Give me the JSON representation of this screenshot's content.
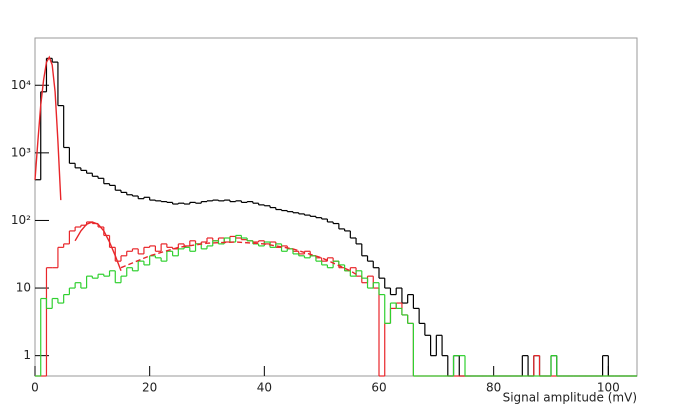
{
  "chart_data": {
    "type": "histogram",
    "xlabel": "Signal amplitude (mV)",
    "xlim": [
      0,
      105
    ],
    "xticks": [
      0,
      20,
      40,
      60,
      80,
      100
    ],
    "ylim": [
      0.5,
      50000
    ],
    "log_y": true,
    "yticks": [
      1,
      10,
      {
        "value": 100,
        "label": "10²"
      },
      {
        "value": 1000,
        "label": "10³"
      },
      {
        "value": 10000,
        "label": "10⁴"
      }
    ],
    "bins": [
      0,
      1,
      2,
      3,
      4,
      5,
      6,
      7,
      8,
      9,
      10,
      11,
      12,
      13,
      14,
      15,
      16,
      17,
      18,
      19,
      20,
      21,
      22,
      23,
      24,
      25,
      26,
      27,
      28,
      29,
      30,
      31,
      32,
      33,
      34,
      35,
      36,
      37,
      38,
      39,
      40,
      41,
      42,
      43,
      44,
      45,
      46,
      47,
      48,
      49,
      50,
      51,
      52,
      53,
      54,
      55,
      56,
      57,
      58,
      59,
      60,
      61,
      62,
      63,
      64,
      65,
      66,
      67,
      68,
      69,
      70,
      71,
      72,
      73,
      74,
      75,
      76,
      77,
      78,
      79,
      80,
      81,
      82,
      83,
      84,
      85,
      86,
      87,
      88,
      89,
      90,
      91,
      92,
      93,
      94,
      95,
      96,
      97,
      98,
      99,
      100,
      101,
      102,
      103,
      104,
      105
    ],
    "series": [
      {
        "color": "#000000",
        "values": [
          400,
          8000,
          25000,
          22000,
          5000,
          1200,
          700,
          600,
          550,
          500,
          450,
          420,
          350,
          330,
          280,
          260,
          240,
          230,
          210,
          220,
          200,
          195,
          190,
          185,
          175,
          180,
          175,
          185,
          180,
          190,
          195,
          200,
          195,
          200,
          190,
          195,
          185,
          190,
          180,
          170,
          165,
          155,
          145,
          140,
          135,
          130,
          125,
          120,
          115,
          110,
          105,
          95,
          90,
          75,
          70,
          55,
          45,
          30,
          25,
          20,
          14,
          10,
          8,
          10,
          6,
          8,
          5,
          3,
          2,
          1,
          2,
          1,
          0,
          1,
          0,
          0,
          0,
          0,
          0,
          0,
          0,
          0,
          0,
          0,
          0,
          1,
          0,
          1,
          0,
          0,
          1,
          0,
          0,
          0,
          0,
          0,
          0,
          0,
          0,
          1,
          0,
          0,
          0,
          0,
          0
        ]
      },
      {
        "color": "#e8262a",
        "values": [
          0,
          0,
          20,
          20,
          40,
          45,
          70,
          80,
          85,
          95,
          90,
          80,
          60,
          40,
          25,
          30,
          35,
          38,
          32,
          40,
          42,
          35,
          45,
          40,
          38,
          45,
          42,
          50,
          45,
          48,
          55,
          50,
          55,
          48,
          58,
          55,
          52,
          50,
          48,
          50,
          45,
          48,
          40,
          42,
          38,
          35,
          32,
          35,
          30,
          28,
          25,
          28,
          25,
          20,
          18,
          20,
          15,
          12,
          15,
          10,
          0,
          3,
          5,
          6,
          4,
          3,
          0,
          0,
          0,
          0,
          0,
          0,
          0,
          0,
          0,
          0,
          0,
          0,
          0,
          0,
          0,
          0,
          0,
          0,
          0,
          0,
          0,
          1,
          0,
          0,
          0,
          0,
          0,
          0,
          0,
          0,
          0,
          0,
          0,
          0,
          0,
          0,
          0,
          0,
          0
        ]
      },
      {
        "color": "#30d030",
        "values": [
          0,
          7,
          5,
          7,
          6,
          8,
          10,
          12,
          10,
          15,
          14,
          16,
          15,
          18,
          12,
          15,
          20,
          18,
          25,
          22,
          30,
          28,
          25,
          35,
          30,
          38,
          40,
          35,
          45,
          38,
          42,
          50,
          45,
          55,
          48,
          60,
          55,
          50,
          45,
          42,
          48,
          40,
          45,
          35,
          38,
          32,
          30,
          28,
          30,
          25,
          22,
          20,
          25,
          22,
          18,
          15,
          18,
          14,
          10,
          12,
          8,
          3,
          6,
          5,
          4,
          3,
          0,
          0,
          0,
          0,
          0,
          0,
          0,
          1,
          1,
          0,
          0,
          0,
          0,
          0,
          0,
          0,
          0,
          0,
          0,
          0,
          0,
          0,
          0,
          0,
          1,
          0,
          0,
          0,
          0,
          0,
          0,
          0,
          0,
          0,
          0,
          0,
          0,
          0,
          0
        ]
      }
    ],
    "fits": [
      {
        "color": "#e8262a",
        "dashed": false,
        "x": [
          0,
          0.5,
          1,
          1.5,
          2,
          2.5,
          3,
          3.5,
          4,
          4.5
        ],
        "values": [
          400,
          1500,
          5000,
          12000,
          22000,
          26000,
          20000,
          8000,
          1500,
          200
        ]
      },
      {
        "color": "#e8262a",
        "dashed": false,
        "x": [
          7,
          8,
          9,
          10,
          11,
          12,
          13,
          14,
          15
        ],
        "values": [
          50,
          70,
          88,
          95,
          88,
          70,
          48,
          30,
          18
        ]
      },
      {
        "color": "#e8262a",
        "dashed": true,
        "x": [
          15,
          20,
          25,
          30,
          35,
          40,
          45,
          50,
          55,
          56
        ],
        "values": [
          20,
          30,
          40,
          46,
          48,
          45,
          38,
          28,
          18,
          16
        ]
      }
    ]
  }
}
